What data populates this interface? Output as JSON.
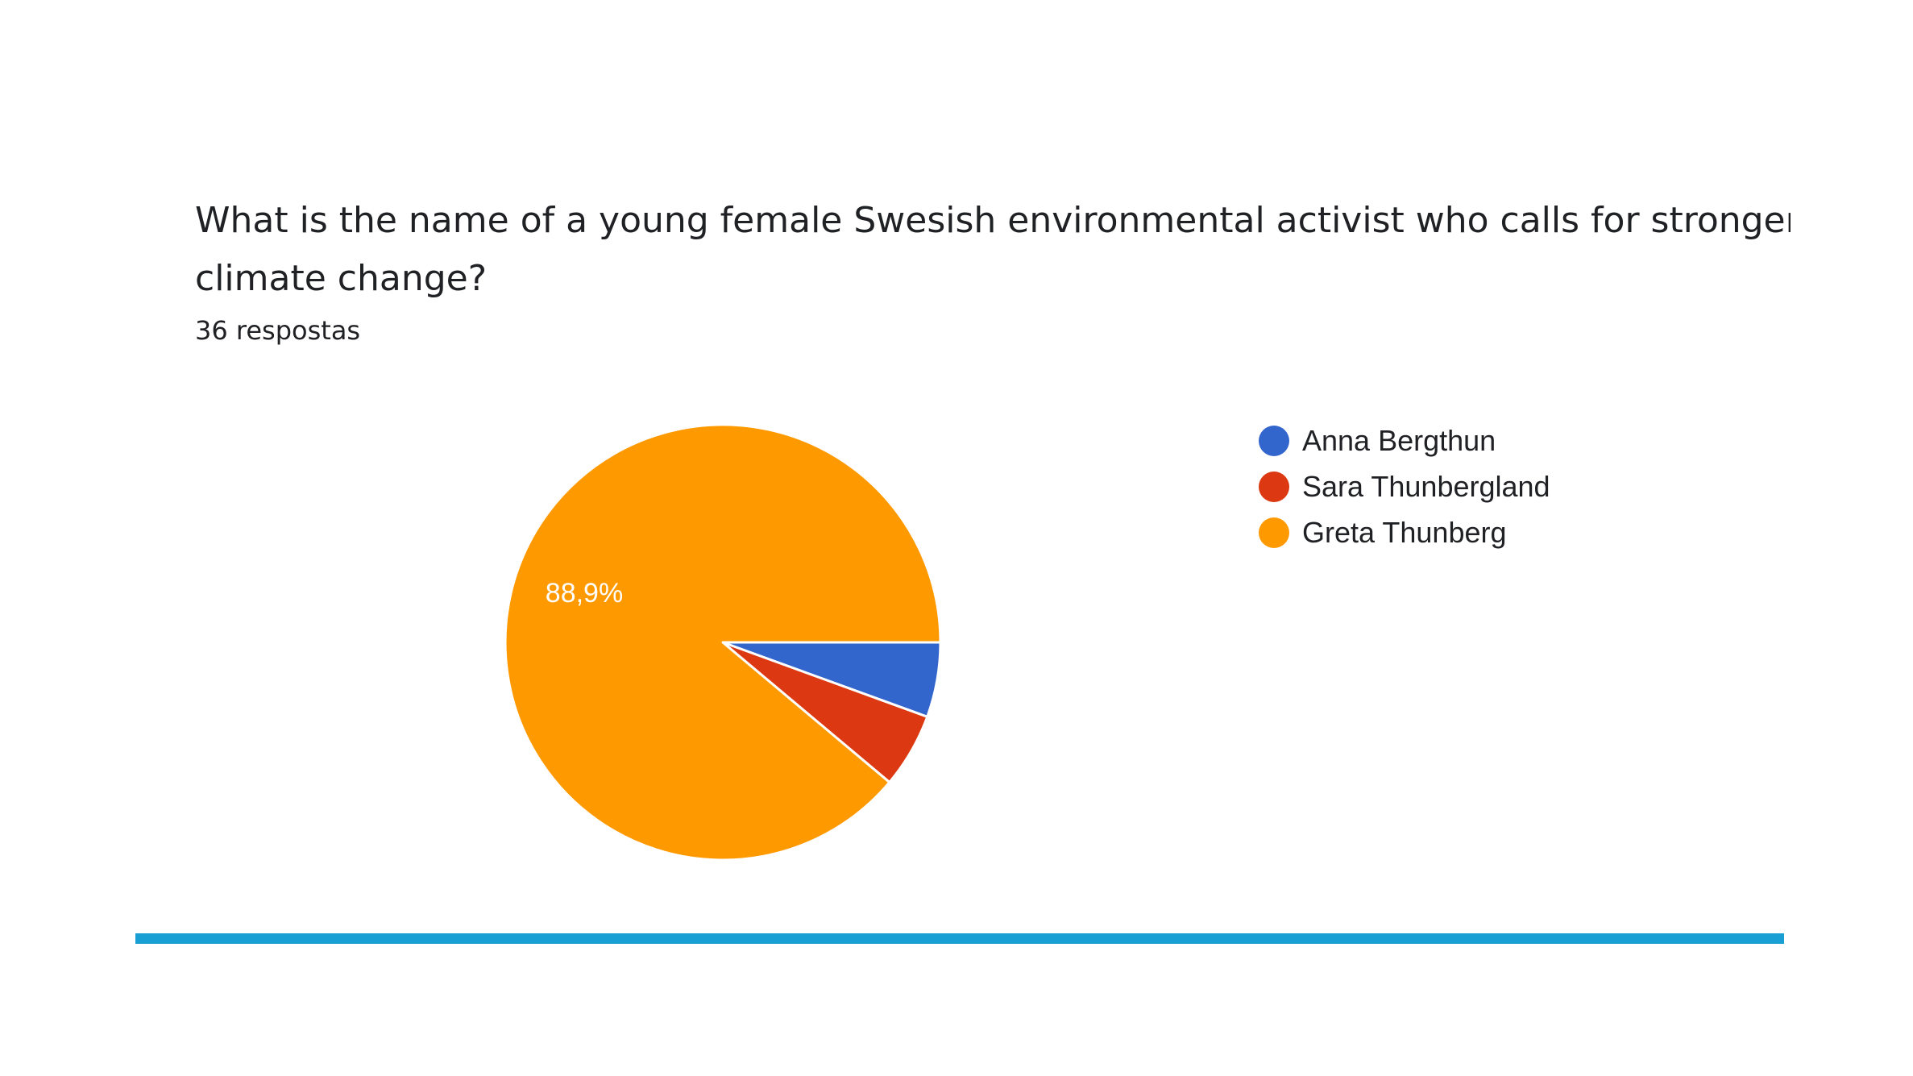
{
  "question": {
    "line1": "What is the name of a young female Swesish environmental activist who calls for stronger actio",
    "line2": "climate change?"
  },
  "responses_label": "36 respostas",
  "colors": {
    "bar": "#1a9fd4"
  },
  "chart_data": {
    "type": "pie",
    "title": "",
    "total": 36,
    "categories": [
      "Anna Bergthun",
      "Sara Thunbergland",
      "Greta Thunberg"
    ],
    "values": [
      2,
      2,
      32
    ],
    "colors": [
      "#3366cc",
      "#dc3912",
      "#ff9900"
    ],
    "data_labels": [
      "",
      "",
      "88,9%"
    ],
    "start_angle": "3 o'clock, clockwise",
    "legend_position": "right"
  }
}
